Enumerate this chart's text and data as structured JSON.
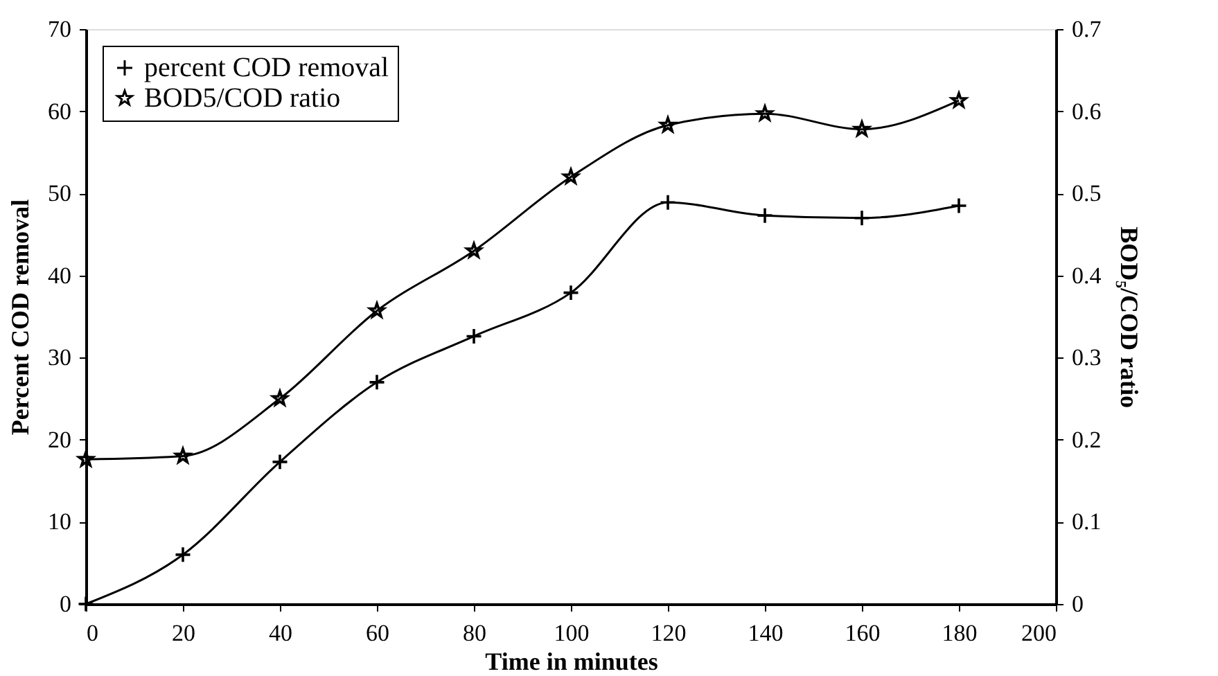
{
  "chart_data": {
    "type": "line",
    "xlabel": "Time in minutes",
    "ylabel": "Percent COD removal",
    "y2label": "BOD₅/COD ratio",
    "x": [
      0,
      20,
      40,
      60,
      80,
      100,
      120,
      140,
      160,
      180
    ],
    "series": [
      {
        "name": "percent COD removal",
        "color": "#000000",
        "marker": "cross",
        "values": [
          0,
          6.0,
          17.3,
          27,
          32.6,
          37.9,
          48.9,
          47.3,
          47,
          48.5
        ]
      },
      {
        "name": "BOD5/COD ratio",
        "color": "#000000",
        "marker": "star",
        "axis": "y2",
        "values": [
          0.176,
          0.18,
          0.25,
          0.357,
          0.43,
          0.52,
          0.583,
          0.597,
          0.578,
          0.613
        ]
      }
    ],
    "xlim": [
      0,
      200
    ],
    "xticks": [
      0,
      20,
      40,
      60,
      80,
      100,
      120,
      140,
      160,
      180,
      200
    ],
    "ylim": [
      0,
      70
    ],
    "yticks": [
      0,
      10,
      20,
      30,
      40,
      50,
      60,
      70
    ],
    "y2lim": [
      0,
      0.7
    ],
    "y2ticks": [
      0,
      0.1,
      0.2,
      0.3,
      0.4,
      0.5,
      0.6,
      0.7
    ],
    "legend": "top left",
    "grid": false,
    "line_style": "solid"
  }
}
